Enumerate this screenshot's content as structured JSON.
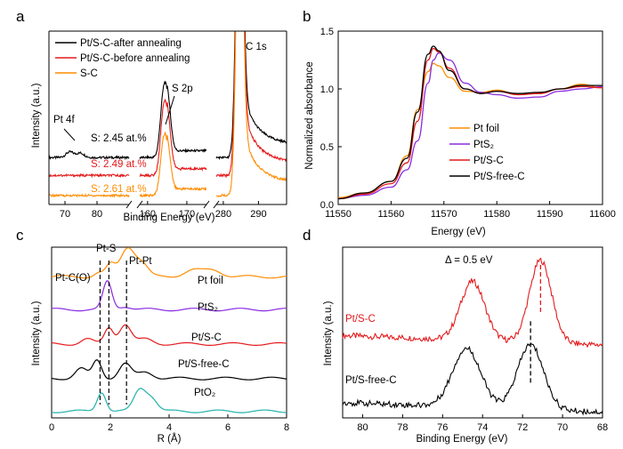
{
  "colors": {
    "black": "#000000",
    "red": "#e41a1c",
    "orange": "#ff8c00",
    "purple": "#8a2be2",
    "cyan": "#20b2aa"
  },
  "chart_data": [
    {
      "id": "a",
      "panel_label": "a",
      "type": "line",
      "xlabel": "Binding Energy (eV)",
      "ylabel": "Intensity (a.u.)",
      "broken_x_axis": true,
      "segments": [
        {
          "xlim": [
            65,
            90
          ],
          "ticks": [
            70,
            80
          ]
        },
        {
          "xlim": [
            158,
            175
          ],
          "ticks": [
            160,
            170
          ]
        },
        {
          "xlim": [
            278,
            298
          ],
          "ticks": [
            280,
            290
          ]
        }
      ],
      "legend": [
        "Pt/S-C-after annealing",
        "Pt/S-C-before annealing",
        "S-C"
      ],
      "annotations": [
        "Pt 4f",
        "S 2p",
        "C 1s",
        "S: 2.45 at.%",
        "S: 2.49 at.%",
        "S: 2.61 at.%"
      ],
      "series": [
        {
          "name": "Pt/S-C-after annealing",
          "color": "black",
          "baseline": 0.42,
          "peaks": [
            [
              71.5,
              0.05,
              1.2
            ],
            [
              74.8,
              0.04,
              1.2
            ],
            [
              164.0,
              0.5,
              0.8
            ],
            [
              165.2,
              0.38,
              0.8
            ],
            [
              284.6,
              3.0,
              0.9
            ]
          ]
        },
        {
          "name": "Pt/S-C-before annealing",
          "color": "red",
          "baseline": 0.26,
          "peaks": [
            [
              164.0,
              0.5,
              0.8
            ],
            [
              165.2,
              0.38,
              0.8
            ],
            [
              284.6,
              3.0,
              0.9
            ]
          ]
        },
        {
          "name": "S-C",
          "color": "orange",
          "baseline": 0.08,
          "peaks": [
            [
              164.0,
              0.42,
              0.8
            ],
            [
              165.2,
              0.3,
              0.8
            ],
            [
              284.6,
              3.0,
              0.9
            ]
          ]
        }
      ]
    },
    {
      "id": "b",
      "panel_label": "b",
      "type": "line",
      "xlabel": "Energy (eV)",
      "ylabel": "Normalized absorbance",
      "xlim": [
        11550,
        11600
      ],
      "ylim": [
        0.0,
        1.5
      ],
      "xticks": [
        11550,
        11560,
        11570,
        11580,
        11590,
        11600
      ],
      "yticks": [
        0.0,
        0.5,
        1.0,
        1.5
      ],
      "legend": [
        "Pt foil",
        "PtS₂",
        "Pt/S-C",
        "Pt/S-free-C"
      ],
      "series": [
        {
          "name": "Pt foil",
          "color": "orange",
          "x": [
            11550,
            11555,
            11560,
            11563,
            11565,
            11567,
            11568,
            11569,
            11571,
            11574,
            11577,
            11580,
            11584,
            11588,
            11592,
            11596,
            11600
          ],
          "y": [
            0.06,
            0.1,
            0.2,
            0.42,
            0.82,
            1.15,
            1.22,
            1.2,
            1.1,
            0.98,
            0.97,
            0.99,
            0.95,
            0.96,
            1.0,
            1.04,
            1.01
          ]
        },
        {
          "name": "PtS₂",
          "color": "purple",
          "x": [
            11550,
            11555,
            11560,
            11563,
            11565,
            11567,
            11568,
            11569,
            11571,
            11574,
            11577,
            11580,
            11584,
            11588,
            11592,
            11596,
            11600
          ],
          "y": [
            0.05,
            0.08,
            0.15,
            0.3,
            0.55,
            1.05,
            1.25,
            1.31,
            1.25,
            1.05,
            0.97,
            0.95,
            0.92,
            0.93,
            0.98,
            1.0,
            1.02
          ]
        },
        {
          "name": "Pt/S-C",
          "color": "red",
          "x": [
            11550,
            11555,
            11560,
            11563,
            11565,
            11567,
            11568,
            11569,
            11571,
            11574,
            11577,
            11580,
            11584,
            11588,
            11592,
            11596,
            11600
          ],
          "y": [
            0.05,
            0.09,
            0.18,
            0.36,
            0.72,
            1.25,
            1.35,
            1.32,
            1.18,
            1.0,
            0.96,
            0.98,
            0.95,
            0.96,
            1.0,
            1.02,
            1.01
          ]
        },
        {
          "name": "Pt/S-free-C",
          "color": "black",
          "x": [
            11550,
            11555,
            11560,
            11563,
            11565,
            11567,
            11568,
            11569,
            11571,
            11574,
            11577,
            11580,
            11584,
            11588,
            11592,
            11596,
            11600
          ],
          "y": [
            0.05,
            0.1,
            0.2,
            0.4,
            0.8,
            1.3,
            1.37,
            1.33,
            1.16,
            1.0,
            0.96,
            0.98,
            0.96,
            0.97,
            1.0,
            1.03,
            1.03
          ]
        }
      ]
    },
    {
      "id": "c",
      "panel_label": "c",
      "type": "line",
      "xlabel": "R (Å)",
      "ylabel": "Intensity (a.u.)",
      "xlim": [
        0,
        8
      ],
      "xticks": [
        0,
        2,
        4,
        6,
        8
      ],
      "dashed_lines_x": [
        1.65,
        1.95,
        2.55
      ],
      "annotations": [
        "Pt-C(O)",
        "Pt-S",
        "Pt-Pt"
      ],
      "series": [
        {
          "name": "Pt foil",
          "label": "Pt foil",
          "color": "orange",
          "offset": 4.2,
          "peaks": [
            [
              1.6,
              0.12,
              0.15
            ],
            [
              2.0,
              0.35,
              0.15
            ],
            [
              2.6,
              0.9,
              0.25
            ],
            [
              3.1,
              0.35,
              0.2
            ],
            [
              4.8,
              0.2,
              0.3
            ],
            [
              5.5,
              0.2,
              0.3
            ]
          ]
        },
        {
          "name": "PtS₂",
          "label": "PtS₂",
          "color": "purple",
          "offset": 3.2,
          "peaks": [
            [
              1.9,
              0.85,
              0.15
            ],
            [
              2.5,
              0.1,
              0.2
            ]
          ]
        },
        {
          "name": "Pt/S-C",
          "label": "Pt/S-C",
          "color": "red",
          "offset": 2.15,
          "peaks": [
            [
              1.2,
              0.15,
              0.2
            ],
            [
              1.95,
              0.5,
              0.15
            ],
            [
              2.5,
              0.6,
              0.2
            ],
            [
              3.2,
              0.15,
              0.25
            ]
          ]
        },
        {
          "name": "Pt/S-free-C",
          "label": "Pt/S-free-C",
          "color": "black",
          "offset": 1.1,
          "peaks": [
            [
              1.0,
              0.3,
              0.2
            ],
            [
              1.55,
              0.55,
              0.15
            ],
            [
              2.5,
              0.45,
              0.2
            ],
            [
              3.2,
              0.2,
              0.25
            ]
          ]
        },
        {
          "name": "PtO₂",
          "label": "PtO₂",
          "color": "cyan",
          "offset": 0.1,
          "peaks": [
            [
              1.7,
              0.6,
              0.15
            ],
            [
              3.0,
              0.65,
              0.2
            ],
            [
              3.4,
              0.4,
              0.2
            ]
          ]
        }
      ]
    },
    {
      "id": "d",
      "panel_label": "d",
      "type": "line",
      "xlabel": "Binding Energy (eV)",
      "ylabel": "Intensity (a.u.)",
      "xlim": [
        81,
        68
      ],
      "xticks": [
        80,
        78,
        76,
        74,
        72,
        70,
        68
      ],
      "annotation": "Δ = 0.5 eV",
      "dashed_lines_x": [
        71.1,
        71.6
      ],
      "series": [
        {
          "name": "Pt/S-C",
          "label": "Pt/S-C",
          "color": "red",
          "offset": 0.62,
          "peaks": [
            [
              74.5,
              0.5,
              0.6
            ],
            [
              71.1,
              0.7,
              0.55
            ]
          ]
        },
        {
          "name": "Pt/S-free-C",
          "label": "Pt/S-free-C",
          "color": "black",
          "offset": 0.05,
          "peaks": [
            [
              74.8,
              0.5,
              0.7
            ],
            [
              71.6,
              0.55,
              0.65
            ]
          ]
        }
      ]
    }
  ]
}
